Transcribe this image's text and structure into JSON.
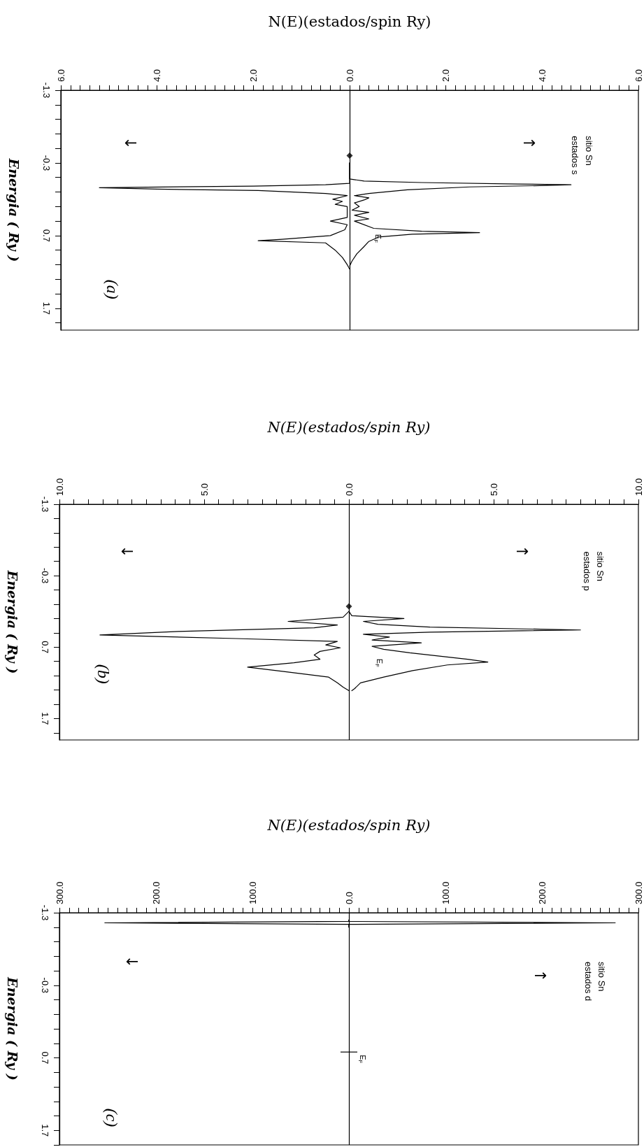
{
  "chart_data": [
    {
      "type": "line",
      "xlabel": "N(E)(estados/spin Ry)",
      "ylabel": "Energia ( Ry )",
      "marker": "none",
      "line_style": "solid",
      "ylim": [
        2.0,
        -1.3
      ],
      "xlim": [
        -6,
        6
      ],
      "yticks": [
        -1.3,
        {
          "value": -1.1,
          "label": null
        },
        {
          "value": -0.9,
          "label": null
        },
        {
          "value": -0.7,
          "label": null
        },
        {
          "value": -0.5,
          "label": null
        },
        -0.3,
        {
          "value": -0.1,
          "label": null
        },
        {
          "value": 0.1,
          "label": null
        },
        {
          "value": 0.3,
          "label": null
        },
        {
          "value": 0.5,
          "label": null
        },
        0.7,
        {
          "value": 0.9,
          "label": null
        },
        {
          "value": 1.1,
          "label": null
        },
        {
          "value": 1.3,
          "label": null
        },
        {
          "value": 1.5,
          "label": null
        },
        1.7,
        {
          "value": 1.9,
          "label": null
        }
      ],
      "xticks": [
        {
          "value": -6,
          "label": "6.0"
        },
        {
          "value": -5.8,
          "label": null
        },
        {
          "value": -5.6,
          "label": null
        },
        {
          "value": -5.4,
          "label": null
        },
        {
          "value": -5.2,
          "label": null
        },
        {
          "value": -5,
          "label": null
        },
        {
          "value": -4.8,
          "label": null
        },
        {
          "value": -4.6,
          "label": null
        },
        {
          "value": -4.4,
          "label": null
        },
        {
          "value": -4.2,
          "label": null
        },
        {
          "value": -4,
          "label": "4.0"
        },
        {
          "value": -3.8,
          "label": null
        },
        {
          "value": -3.6,
          "label": null
        },
        {
          "value": -3.4,
          "label": null
        },
        {
          "value": -3.2,
          "label": null
        },
        {
          "value": -3,
          "label": null
        },
        {
          "value": -2.8,
          "label": null
        },
        {
          "value": -2.6,
          "label": null
        },
        {
          "value": -2.4,
          "label": null
        },
        {
          "value": -2.2,
          "label": null
        },
        {
          "value": -2,
          "label": "2.0"
        },
        {
          "value": -1.8,
          "label": null
        },
        {
          "value": -1.6,
          "label": null
        },
        {
          "value": -1.4,
          "label": null
        },
        {
          "value": -1.2,
          "label": null
        },
        {
          "value": -1,
          "label": null
        },
        {
          "value": -0.8,
          "label": null
        },
        {
          "value": -0.6,
          "label": null
        },
        {
          "value": -0.4,
          "label": null
        },
        {
          "value": -0.2,
          "label": null
        },
        {
          "value": 0,
          "label": "0.0"
        },
        {
          "value": 0.2,
          "label": null
        },
        {
          "value": 0.4,
          "label": null
        },
        {
          "value": 0.6,
          "label": null
        },
        {
          "value": 0.8,
          "label": null
        },
        {
          "value": 1,
          "label": null
        },
        {
          "value": 1.2,
          "label": null
        },
        {
          "value": 1.4,
          "label": null
        },
        {
          "value": 1.6,
          "label": null
        },
        {
          "value": 1.8,
          "label": null
        },
        {
          "value": 2,
          "label": "2.0"
        },
        {
          "value": 2.2,
          "label": null
        },
        {
          "value": 2.4,
          "label": null
        },
        {
          "value": 2.6,
          "label": null
        },
        {
          "value": 2.8,
          "label": null
        },
        {
          "value": 3,
          "label": null
        },
        {
          "value": 3.2,
          "label": null
        },
        {
          "value": 3.4,
          "label": null
        },
        {
          "value": 3.6,
          "label": null
        },
        {
          "value": 3.8,
          "label": null
        },
        {
          "value": 4,
          "label": "4.0"
        },
        {
          "value": 4.2,
          "label": null
        },
        {
          "value": 4.4,
          "label": null
        },
        {
          "value": 4.6,
          "label": null
        },
        {
          "value": 4.8,
          "label": null
        },
        {
          "value": 5,
          "label": null
        },
        {
          "value": 5.2,
          "label": null
        },
        {
          "value": 5.4,
          "label": null
        },
        {
          "value": 5.6,
          "label": null
        },
        {
          "value": 5.8,
          "label": null
        },
        {
          "value": 6,
          "label": "6.0"
        }
      ],
      "ref_lines": [
        {
          "axis": "x",
          "value": 0,
          "color": "#000000"
        }
      ],
      "series": [
        {
          "color": "#000000",
          "values": [
            -0.3,
            -0.08,
            -0.05,
            -0.03,
            -0.01,
            0.0,
            0.01,
            0.03,
            0.07,
            0.12,
            0.15,
            0.18,
            0.21,
            0.25,
            0.3,
            0.35,
            0.38,
            0.42,
            0.47,
            0.5,
            0.6,
            0.64,
            0.66,
            0.68,
            0.72,
            0.78,
            0.85,
            0.95,
            1.05,
            1.12
          ],
          "x": [
            0,
            0,
            0.3,
            1.5,
            3.5,
            4.6,
            4.1,
            2.5,
            1.2,
            0.4,
            0.1,
            0.4,
            0.3,
            0.1,
            0.2,
            0.05,
            0.4,
            0.1,
            0.4,
            0.1,
            0.5,
            1.5,
            2.7,
            1.3,
            0.6,
            0.4,
            0.3,
            0.15,
            0.05,
            0
          ]
        },
        {
          "color": "#000000",
          "values": [
            -0.3,
            -0.02,
            0.0,
            0.02,
            0.04,
            0.06,
            0.08,
            0.12,
            0.15,
            0.2,
            0.23,
            0.27,
            0.3,
            0.45,
            0.5,
            0.55,
            0.62,
            0.7,
            0.75,
            0.77,
            0.8,
            0.9,
            1.0,
            1.1,
            1.16
          ],
          "x": [
            0,
            0,
            -0.5,
            -2,
            -5.2,
            -4,
            -1.9,
            -0.5,
            -0.05,
            -0.35,
            -0.15,
            -0.3,
            -0.05,
            -0.05,
            -0.4,
            -0.05,
            -0.1,
            -0.4,
            -1.4,
            -1.9,
            -0.5,
            -0.3,
            -0.15,
            -0.05,
            0
          ]
        },
        {
          "type": "scatter",
          "marker": "diamond",
          "color": "#000000",
          "x": [
            0
          ],
          "values": [
            -0.4
          ]
        }
      ],
      "annotations": [
        "↑",
        "↓",
        "sitio Sn",
        "estados s",
        "(a)",
        "E$_{F}$"
      ]
    },
    {
      "type": "line",
      "xlabel": "N(E)(estados/spin Ry)",
      "ylabel": "Energia ( Ry )",
      "marker": "none",
      "line_style": "solid",
      "ylim": [
        2.0,
        -1.3
      ],
      "xlim": [
        -10,
        10
      ],
      "yticks": [
        -1.3,
        {
          "value": -1.1,
          "label": null
        },
        {
          "value": -0.9,
          "label": null
        },
        {
          "value": -0.7,
          "label": null
        },
        {
          "value": -0.5,
          "label": null
        },
        -0.3,
        {
          "value": -0.1,
          "label": null
        },
        {
          "value": 0.1,
          "label": null
        },
        {
          "value": 0.3,
          "label": null
        },
        {
          "value": 0.5,
          "label": null
        },
        0.7,
        {
          "value": 0.9,
          "label": null
        },
        {
          "value": 1.1,
          "label": null
        },
        {
          "value": 1.3,
          "label": null
        },
        {
          "value": 1.5,
          "label": null
        },
        1.7,
        {
          "value": 1.9,
          "label": null
        }
      ],
      "xticks": [
        {
          "value": -10,
          "label": "10.0"
        },
        {
          "value": -9.5,
          "label": null
        },
        {
          "value": -9,
          "label": null
        },
        {
          "value": -8.5,
          "label": null
        },
        {
          "value": -8,
          "label": null
        },
        {
          "value": -7.5,
          "label": null
        },
        {
          "value": -7,
          "label": null
        },
        {
          "value": -6.5,
          "label": null
        },
        {
          "value": -6,
          "label": null
        },
        {
          "value": -5.5,
          "label": null
        },
        {
          "value": -5,
          "label": "5.0"
        },
        {
          "value": -4.5,
          "label": null
        },
        {
          "value": -4,
          "label": null
        },
        {
          "value": -3.5,
          "label": null
        },
        {
          "value": -3,
          "label": null
        },
        {
          "value": -2.5,
          "label": null
        },
        {
          "value": -2,
          "label": null
        },
        {
          "value": -1.5,
          "label": null
        },
        {
          "value": -1,
          "label": null
        },
        {
          "value": -0.5,
          "label": null
        },
        {
          "value": 0,
          "label": "0.0"
        },
        {
          "value": 0.5,
          "label": null
        },
        {
          "value": 1,
          "label": null
        },
        {
          "value": 1.5,
          "label": null
        },
        {
          "value": 2,
          "label": null
        },
        {
          "value": 2.5,
          "label": null
        },
        {
          "value": 3,
          "label": null
        },
        {
          "value": 3.5,
          "label": null
        },
        {
          "value": 4,
          "label": null
        },
        {
          "value": 4.5,
          "label": null
        },
        {
          "value": 5,
          "label": "5.0"
        },
        {
          "value": 5.5,
          "label": null
        },
        {
          "value": 6,
          "label": null
        },
        {
          "value": 6.5,
          "label": null
        },
        {
          "value": 7,
          "label": null
        },
        {
          "value": 7.5,
          "label": null
        },
        {
          "value": 8,
          "label": null
        },
        {
          "value": 8.5,
          "label": null
        },
        {
          "value": 9,
          "label": null
        },
        {
          "value": 9.5,
          "label": null
        },
        {
          "value": 10,
          "label": "10.0"
        }
      ],
      "ref_lines": [
        {
          "axis": "x",
          "value": 0,
          "color": "#000000"
        }
      ],
      "series": [
        {
          "color": "#000000",
          "values": [
            0.2,
            0.26,
            0.3,
            0.34,
            0.38,
            0.42,
            0.46,
            0.49,
            0.52,
            0.56,
            0.6,
            0.64,
            0.69,
            0.73,
            0.78,
            0.87,
            0.91,
            0.95,
            1.03,
            1.12,
            1.2,
            1.28,
            1.31
          ],
          "x": [
            0,
            0.1,
            1.9,
            0.5,
            1.0,
            2.8,
            8.0,
            2.8,
            0.5,
            1.4,
            0.8,
            2.5,
            0.8,
            1.2,
            2.1,
            4.1,
            4.8,
            3.4,
            2.2,
            1.2,
            0.4,
            0.2,
            0.1
          ]
        },
        {
          "color": "#000000",
          "values": [
            0.2,
            0.28,
            0.34,
            0.39,
            0.43,
            0.48,
            0.53,
            0.58,
            0.62,
            0.67,
            0.71,
            0.76,
            0.81,
            0.87,
            0.92,
            0.98,
            1.04,
            1.12,
            1.2,
            1.26,
            1.31
          ],
          "x": [
            0,
            -0.2,
            -2.1,
            -0.4,
            -1.2,
            -5.9,
            -8.6,
            -3.9,
            -0.4,
            -0.8,
            -0.3,
            -1.0,
            -1.2,
            -1.0,
            -1.9,
            -3.5,
            -2.3,
            -0.7,
            -0.4,
            -0.2,
            0
          ]
        },
        {
          "type": "scatter",
          "marker": "diamond",
          "color": "#000000",
          "x": [
            0
          ],
          "values": [
            0.13
          ]
        }
      ],
      "annotations": [
        "↑",
        "↓",
        "sitio Sn",
        "estados p",
        "(b)",
        "E$_{F}$"
      ]
    },
    {
      "type": "line",
      "xlabel": "N(E)(estados/spin Ry)",
      "ylabel": "Energia ( Ry )",
      "marker": "none",
      "line_style": "solid",
      "ylim": [
        1.9,
        -1.3
      ],
      "xlim": [
        -300,
        300
      ],
      "yticks": [
        -1.3,
        {
          "value": -1.1,
          "label": null
        },
        {
          "value": -0.9,
          "label": null
        },
        {
          "value": -0.7,
          "label": null
        },
        {
          "value": -0.5,
          "label": null
        },
        -0.3,
        {
          "value": -0.1,
          "label": null
        },
        {
          "value": 0.1,
          "label": null
        },
        {
          "value": 0.3,
          "label": null
        },
        {
          "value": 0.5,
          "label": null
        },
        0.7,
        {
          "value": 0.9,
          "label": null
        },
        {
          "value": 1.1,
          "label": null
        },
        {
          "value": 1.3,
          "label": null
        },
        {
          "value": 1.5,
          "label": null
        },
        1.7,
        {
          "value": 1.9,
          "label": null
        }
      ],
      "xticks": [
        {
          "value": -300,
          "label": "300.0"
        },
        {
          "value": -290,
          "label": null
        },
        {
          "value": -280,
          "label": null
        },
        {
          "value": -270,
          "label": null
        },
        {
          "value": -260,
          "label": null
        },
        {
          "value": -250,
          "label": null
        },
        {
          "value": -240,
          "label": null
        },
        {
          "value": -230,
          "label": null
        },
        {
          "value": -220,
          "label": null
        },
        {
          "value": -210,
          "label": null
        },
        {
          "value": -200,
          "label": "200.0"
        },
        {
          "value": -190,
          "label": null
        },
        {
          "value": -180,
          "label": null
        },
        {
          "value": -170,
          "label": null
        },
        {
          "value": -160,
          "label": null
        },
        {
          "value": -150,
          "label": null
        },
        {
          "value": -140,
          "label": null
        },
        {
          "value": -130,
          "label": null
        },
        {
          "value": -120,
          "label": null
        },
        {
          "value": -110,
          "label": null
        },
        {
          "value": -100,
          "label": "100.0"
        },
        {
          "value": -90,
          "label": null
        },
        {
          "value": -80,
          "label": null
        },
        {
          "value": -70,
          "label": null
        },
        {
          "value": -60,
          "label": null
        },
        {
          "value": -50,
          "label": null
        },
        {
          "value": -40,
          "label": null
        },
        {
          "value": -30,
          "label": null
        },
        {
          "value": -20,
          "label": null
        },
        {
          "value": -10,
          "label": null
        },
        {
          "value": 0,
          "label": "0.0"
        },
        {
          "value": 10,
          "label": null
        },
        {
          "value": 20,
          "label": null
        },
        {
          "value": 30,
          "label": null
        },
        {
          "value": 40,
          "label": null
        },
        {
          "value": 50,
          "label": null
        },
        {
          "value": 60,
          "label": null
        },
        {
          "value": 70,
          "label": null
        },
        {
          "value": 80,
          "label": null
        },
        {
          "value": 90,
          "label": null
        },
        {
          "value": 100,
          "label": "100.0"
        },
        {
          "value": 110,
          "label": null
        },
        {
          "value": 120,
          "label": null
        },
        {
          "value": 130,
          "label": null
        },
        {
          "value": 140,
          "label": null
        },
        {
          "value": 150,
          "label": null
        },
        {
          "value": 160,
          "label": null
        },
        {
          "value": 170,
          "label": null
        },
        {
          "value": 180,
          "label": null
        },
        {
          "value": 190,
          "label": null
        },
        {
          "value": 200,
          "label": "200.0"
        },
        {
          "value": 210,
          "label": null
        },
        {
          "value": 220,
          "label": null
        },
        {
          "value": 230,
          "label": null
        },
        {
          "value": 240,
          "label": null
        },
        {
          "value": 250,
          "label": null
        },
        {
          "value": 260,
          "label": null
        },
        {
          "value": 270,
          "label": null
        },
        {
          "value": 280,
          "label": null
        },
        {
          "value": 290,
          "label": null
        },
        {
          "value": 300,
          "label": "300.0"
        }
      ],
      "ref_lines": [
        {
          "axis": "x",
          "value": 0,
          "color": "#000000"
        }
      ],
      "series": [
        {
          "color": "#000000",
          "values": [
            -1.2,
            -1.18,
            -1.16,
            -1.14,
            -1.1
          ],
          "x": [
            0,
            0,
            276,
            0,
            0
          ]
        },
        {
          "color": "#000000",
          "values": [
            -1.2,
            -1.18,
            -1.16,
            -1.14,
            -1.1
          ],
          "x": [
            0,
            0,
            -253,
            0,
            0
          ]
        }
      ],
      "annotations": [
        "↑",
        "↓",
        "sitio Sn",
        "estados d",
        "(c)",
        {
          "text": "E$_{F}$",
          "x": 0,
          "y": 0.62
        }
      ]
    }
  ]
}
